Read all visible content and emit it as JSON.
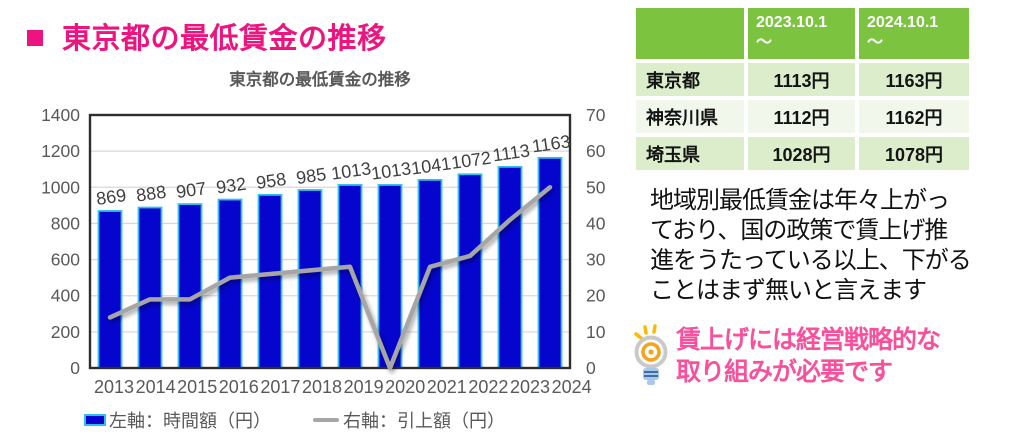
{
  "header": {
    "bullet": "■",
    "title": "東京都の最低賃金の推移",
    "accent_color": "#EE1480"
  },
  "chart_data": {
    "type": "bar",
    "subtype": "bar+line combo",
    "title": "東京都の最低賃金の推移",
    "categories": [
      "2013",
      "2014",
      "2015",
      "2016",
      "2017",
      "2018",
      "2019",
      "2020",
      "2021",
      "2022",
      "2023",
      "2024"
    ],
    "series": [
      {
        "name": "左軸：時間額（円）",
        "type": "bar",
        "axis": "left",
        "values": [
          869,
          888,
          907,
          932,
          958,
          985,
          1013,
          1013,
          1041,
          1072,
          1113,
          1163
        ]
      },
      {
        "name": "右軸：引上額（円）",
        "type": "line",
        "axis": "right",
        "values": [
          14,
          19,
          19,
          25,
          26,
          27,
          28,
          0,
          28,
          31,
          41,
          50
        ]
      }
    ],
    "left_axis": {
      "min": 0,
      "max": 1400,
      "step": 200
    },
    "right_axis": {
      "min": 0,
      "max": 70,
      "step": 10
    },
    "grid": true,
    "legend_position": "bottom",
    "data_labels": true,
    "colors": {
      "bar": "#0505CD",
      "bar_border": "#33BEEC",
      "line": "#A6A6A6",
      "grid": "#D9D9D9",
      "plot_border": "#2E2E2E",
      "axis_text": "#595959",
      "data_label": "#404040"
    }
  },
  "table": {
    "header": {
      "col1": "",
      "col2_line1": "2023.10.1",
      "col2_line2": "～",
      "col3_line1": "2024.10.1",
      "col3_line2": "～"
    },
    "rows": [
      {
        "label": "東京都",
        "v2023": "1113円",
        "v2024": "1163円"
      },
      {
        "label": "神奈川県",
        "v2023": "1112円",
        "v2024": "1162円"
      },
      {
        "label": "埼玉県",
        "v2023": "1028円",
        "v2024": "1078円"
      }
    ],
    "colors": {
      "header_bg": "#7CC340",
      "header_text": "#FFFFFF",
      "row_band_green": "#DCEDCC",
      "row_band_light": "#F1F8EB"
    }
  },
  "commentary": {
    "text": "地域別最低賃金は年々上がっ\nており、国の政策で賃上げ推\n進をうたっている以上、下がる\nことはまず無いと言えます"
  },
  "callout": {
    "icon": "lightbulb-icon",
    "text": "賃上げには経営戦略的な\n取り組みが必要です",
    "color": "#F9509C"
  }
}
